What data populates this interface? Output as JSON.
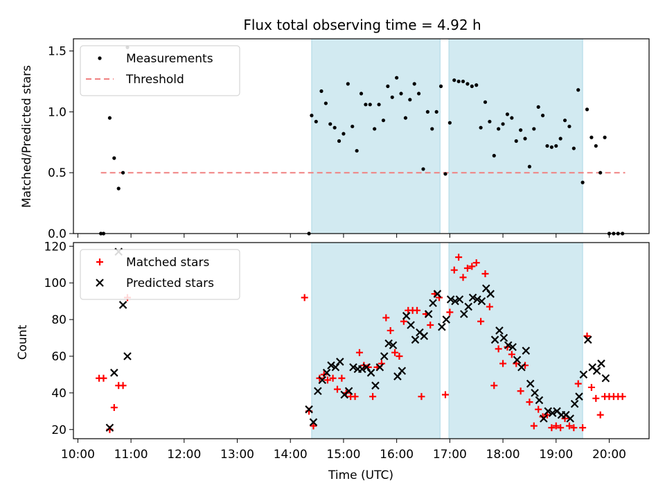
{
  "chart_data": [
    {
      "type": "scatter",
      "title": "Flux total observing time = 4.92 h",
      "xlabel": "",
      "ylabel": "Matched/Predicted stars",
      "ylim": [
        0,
        1.6
      ],
      "yticks": [
        0.0,
        0.5,
        1.0,
        1.5
      ],
      "ytick_labels": [
        "0.0",
        "0.5",
        "1.0",
        "1.5"
      ],
      "grid": false,
      "legend_position": "top-left",
      "shaded_intervals": [
        [
          "14:24",
          "16:49"
        ],
        [
          "16:59",
          "19:30"
        ]
      ],
      "shade_color": "#add8e6",
      "threshold": {
        "name": "Threshold",
        "y": 0.5,
        "x_start": "10:26",
        "x_end": "20:18",
        "color": "#f08080"
      },
      "series": [
        {
          "name": "Measurements",
          "color": "#000000",
          "marker": "dot",
          "points": [
            [
              "10:26",
              0.0
            ],
            [
              "10:29",
              0.0
            ],
            [
              "10:36",
              0.95
            ],
            [
              "10:41",
              0.62
            ],
            [
              "10:46",
              0.37
            ],
            [
              "10:51",
              0.5
            ],
            [
              "10:56",
              1.53
            ],
            [
              "14:21",
              0.0
            ],
            [
              "14:24",
              0.97
            ],
            [
              "14:29",
              0.92
            ],
            [
              "14:35",
              1.17
            ],
            [
              "14:40",
              1.07
            ],
            [
              "14:45",
              0.9
            ],
            [
              "14:50",
              0.87
            ],
            [
              "14:55",
              0.76
            ],
            [
              "15:00",
              0.82
            ],
            [
              "15:05",
              1.23
            ],
            [
              "15:10",
              0.88
            ],
            [
              "15:15",
              0.68
            ],
            [
              "15:20",
              1.15
            ],
            [
              "15:25",
              1.06
            ],
            [
              "15:30",
              1.06
            ],
            [
              "15:35",
              0.86
            ],
            [
              "15:40",
              1.06
            ],
            [
              "15:45",
              0.93
            ],
            [
              "15:50",
              1.21
            ],
            [
              "15:55",
              1.12
            ],
            [
              "16:00",
              1.28
            ],
            [
              "16:05",
              1.15
            ],
            [
              "16:10",
              0.95
            ],
            [
              "16:15",
              1.1
            ],
            [
              "16:20",
              1.23
            ],
            [
              "16:25",
              1.15
            ],
            [
              "16:30",
              0.53
            ],
            [
              "16:35",
              1.0
            ],
            [
              "16:40",
              0.86
            ],
            [
              "16:45",
              1.0
            ],
            [
              "16:50",
              1.21
            ],
            [
              "16:55",
              0.49
            ],
            [
              "17:00",
              0.91
            ],
            [
              "17:05",
              1.26
            ],
            [
              "17:10",
              1.25
            ],
            [
              "17:15",
              1.25
            ],
            [
              "17:20",
              1.23
            ],
            [
              "17:25",
              1.21
            ],
            [
              "17:30",
              1.22
            ],
            [
              "17:35",
              0.87
            ],
            [
              "17:40",
              1.08
            ],
            [
              "17:45",
              0.92
            ],
            [
              "17:50",
              0.64
            ],
            [
              "17:55",
              0.86
            ],
            [
              "18:00",
              0.9
            ],
            [
              "18:05",
              0.98
            ],
            [
              "18:10",
              0.95
            ],
            [
              "18:15",
              0.76
            ],
            [
              "18:20",
              0.85
            ],
            [
              "18:25",
              0.78
            ],
            [
              "18:30",
              0.55
            ],
            [
              "18:35",
              0.86
            ],
            [
              "18:40",
              1.04
            ],
            [
              "18:45",
              0.97
            ],
            [
              "18:50",
              0.72
            ],
            [
              "18:55",
              0.71
            ],
            [
              "19:00",
              0.72
            ],
            [
              "19:05",
              0.78
            ],
            [
              "19:10",
              0.93
            ],
            [
              "19:15",
              0.88
            ],
            [
              "19:20",
              0.7
            ],
            [
              "19:25",
              1.18
            ],
            [
              "19:30",
              0.42
            ],
            [
              "19:35",
              1.02
            ],
            [
              "19:40",
              0.79
            ],
            [
              "19:45",
              0.72
            ],
            [
              "19:50",
              0.5
            ],
            [
              "19:55",
              0.79
            ],
            [
              "20:00",
              0.0
            ],
            [
              "20:05",
              0.0
            ],
            [
              "20:10",
              0.0
            ],
            [
              "20:15",
              0.0
            ]
          ]
        }
      ]
    },
    {
      "type": "scatter",
      "title": "",
      "xlabel": "Time (UTC)",
      "ylabel": "Count",
      "ylim": [
        15,
        122
      ],
      "xlim": [
        "09:55",
        "20:45"
      ],
      "xticks": [
        "10:00",
        "11:00",
        "12:00",
        "13:00",
        "14:00",
        "15:00",
        "16:00",
        "17:00",
        "18:00",
        "19:00",
        "20:00"
      ],
      "yticks": [
        20,
        40,
        60,
        80,
        100,
        120
      ],
      "ytick_labels": [
        "20",
        "40",
        "60",
        "80",
        "100",
        "120"
      ],
      "grid": false,
      "legend_position": "top-left",
      "shaded_intervals": [
        [
          "14:24",
          "16:49"
        ],
        [
          "16:59",
          "19:30"
        ]
      ],
      "shade_color": "#add8e6",
      "series": [
        {
          "name": "Matched stars",
          "color": "#ff0000",
          "marker": "plus",
          "points": [
            [
              "10:24",
              48
            ],
            [
              "10:29",
              48
            ],
            [
              "10:36",
              20
            ],
            [
              "10:41",
              32
            ],
            [
              "10:46",
              44
            ],
            [
              "10:51",
              44
            ],
            [
              "10:56",
              92
            ],
            [
              "14:16",
              92
            ],
            [
              "14:21",
              30
            ],
            [
              "14:26",
              22
            ],
            [
              "14:33",
              48
            ],
            [
              "14:38",
              50
            ],
            [
              "14:42",
              47
            ],
            [
              "14:48",
              48
            ],
            [
              "14:53",
              42
            ],
            [
              "14:58",
              48
            ],
            [
              "15:03",
              40
            ],
            [
              "15:08",
              38
            ],
            [
              "15:13",
              38
            ],
            [
              "15:18",
              62
            ],
            [
              "15:23",
              55
            ],
            [
              "15:28",
              54
            ],
            [
              "15:33",
              38
            ],
            [
              "15:38",
              54
            ],
            [
              "15:43",
              56
            ],
            [
              "15:48",
              81
            ],
            [
              "15:53",
              74
            ],
            [
              "15:58",
              62
            ],
            [
              "16:03",
              60
            ],
            [
              "16:08",
              79
            ],
            [
              "16:13",
              85
            ],
            [
              "16:18",
              85
            ],
            [
              "16:23",
              85
            ],
            [
              "16:28",
              38
            ],
            [
              "16:33",
              83
            ],
            [
              "16:38",
              77
            ],
            [
              "16:43",
              94
            ],
            [
              "16:48",
              92
            ],
            [
              "16:55",
              39
            ],
            [
              "17:00",
              84
            ],
            [
              "17:05",
              107
            ],
            [
              "17:10",
              114
            ],
            [
              "17:15",
              103
            ],
            [
              "17:20",
              108
            ],
            [
              "17:25",
              109
            ],
            [
              "17:30",
              111
            ],
            [
              "17:35",
              79
            ],
            [
              "17:40",
              105
            ],
            [
              "17:45",
              87
            ],
            [
              "17:50",
              44
            ],
            [
              "17:55",
              64
            ],
            [
              "18:00",
              56
            ],
            [
              "18:05",
              65
            ],
            [
              "18:10",
              61
            ],
            [
              "18:15",
              56
            ],
            [
              "18:20",
              41
            ],
            [
              "18:25",
              55
            ],
            [
              "18:30",
              35
            ],
            [
              "18:35",
              22
            ],
            [
              "18:40",
              31
            ],
            [
              "18:45",
              27
            ],
            [
              "18:50",
              28
            ],
            [
              "18:55",
              21
            ],
            [
              "19:00",
              22
            ],
            [
              "19:05",
              21
            ],
            [
              "19:10",
              26
            ],
            [
              "19:15",
              22
            ],
            [
              "19:20",
              21
            ],
            [
              "19:25",
              45
            ],
            [
              "19:30",
              21
            ],
            [
              "19:35",
              71
            ],
            [
              "19:40",
              43
            ],
            [
              "19:45",
              37
            ],
            [
              "19:50",
              28
            ],
            [
              "19:55",
              38
            ],
            [
              "20:00",
              38
            ],
            [
              "20:05",
              38
            ],
            [
              "20:10",
              38
            ],
            [
              "20:15",
              38
            ]
          ]
        },
        {
          "name": "Predicted stars",
          "color": "#000000",
          "marker": "x",
          "points": [
            [
              "10:36",
              21
            ],
            [
              "10:41",
              51
            ],
            [
              "10:46",
              117
            ],
            [
              "10:51",
              88
            ],
            [
              "10:56",
              60
            ],
            [
              "14:21",
              31
            ],
            [
              "14:26",
              24
            ],
            [
              "14:31",
              41
            ],
            [
              "14:36",
              47
            ],
            [
              "14:41",
              51
            ],
            [
              "14:46",
              55
            ],
            [
              "14:51",
              54
            ],
            [
              "14:56",
              57
            ],
            [
              "15:01",
              39
            ],
            [
              "15:06",
              41
            ],
            [
              "15:11",
              54
            ],
            [
              "15:16",
              53
            ],
            [
              "15:21",
              53
            ],
            [
              "15:26",
              54
            ],
            [
              "15:31",
              51
            ],
            [
              "15:36",
              44
            ],
            [
              "15:41",
              54
            ],
            [
              "15:46",
              60
            ],
            [
              "15:51",
              67
            ],
            [
              "15:56",
              66
            ],
            [
              "16:01",
              49
            ],
            [
              "16:06",
              52
            ],
            [
              "16:11",
              82
            ],
            [
              "16:16",
              77
            ],
            [
              "16:21",
              69
            ],
            [
              "16:26",
              73
            ],
            [
              "16:31",
              71
            ],
            [
              "16:36",
              83
            ],
            [
              "16:41",
              89
            ],
            [
              "16:46",
              94
            ],
            [
              "16:51",
              76
            ],
            [
              "16:56",
              80
            ],
            [
              "17:01",
              91
            ],
            [
              "17:06",
              90
            ],
            [
              "17:11",
              91
            ],
            [
              "17:16",
              83
            ],
            [
              "17:21",
              87
            ],
            [
              "17:26",
              92
            ],
            [
              "17:31",
              91
            ],
            [
              "17:36",
              90
            ],
            [
              "17:41",
              97
            ],
            [
              "17:46",
              94
            ],
            [
              "17:51",
              69
            ],
            [
              "17:56",
              74
            ],
            [
              "18:01",
              70
            ],
            [
              "18:06",
              66
            ],
            [
              "18:11",
              65
            ],
            [
              "18:16",
              58
            ],
            [
              "18:21",
              54
            ],
            [
              "18:26",
              63
            ],
            [
              "18:31",
              45
            ],
            [
              "18:36",
              40
            ],
            [
              "18:41",
              36
            ],
            [
              "18:46",
              26
            ],
            [
              "18:51",
              30
            ],
            [
              "18:56",
              29
            ],
            [
              "19:01",
              30
            ],
            [
              "19:06",
              28
            ],
            [
              "19:11",
              28
            ],
            [
              "19:16",
              26
            ],
            [
              "19:21",
              34
            ],
            [
              "19:26",
              38
            ],
            [
              "19:31",
              50
            ],
            [
              "19:36",
              69
            ],
            [
              "19:41",
              54
            ],
            [
              "19:46",
              52
            ],
            [
              "19:51",
              56
            ],
            [
              "19:56",
              48
            ]
          ]
        }
      ]
    }
  ]
}
